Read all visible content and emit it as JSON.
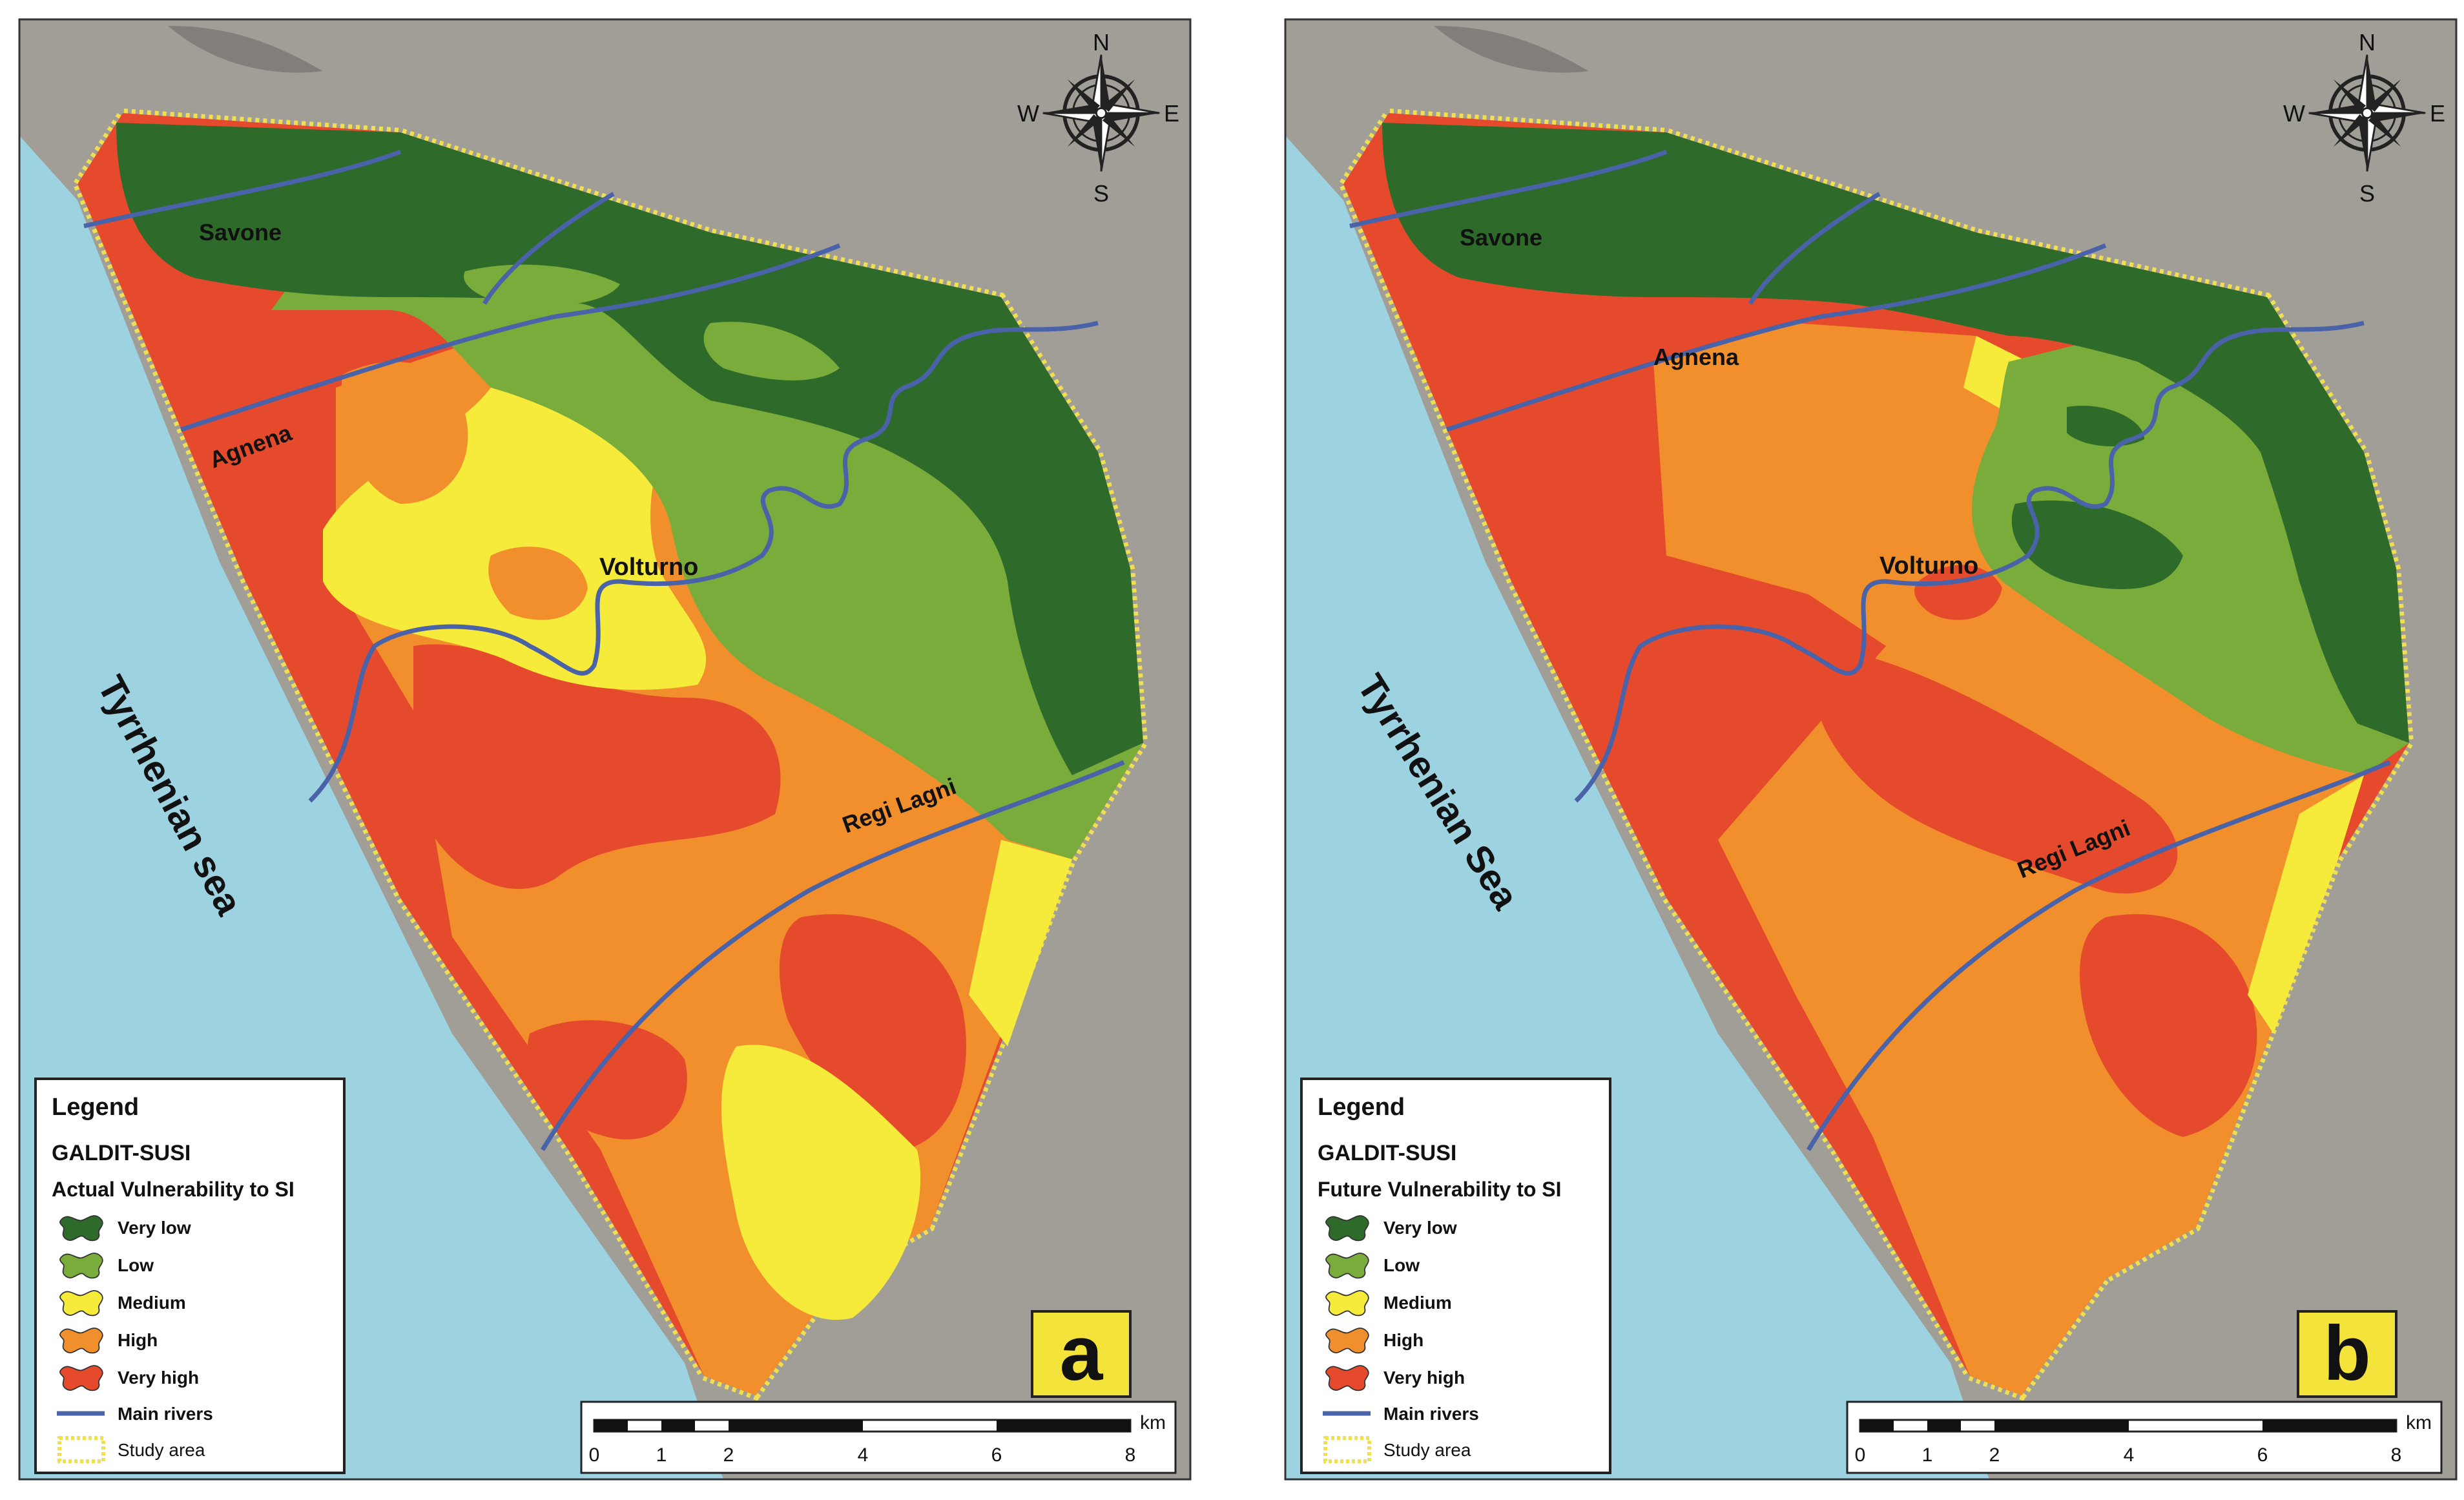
{
  "colors": {
    "sea": "#9dd3e0",
    "land": "#a19e98",
    "very_low": "#2e6a2a",
    "low": "#7aac3c",
    "medium": "#f6ea3a",
    "high": "#f18f2c",
    "very_high": "#e64a2c",
    "river": "#4a62a8",
    "study_area": "#f0e050",
    "panel_label_bg": "#f3e33a"
  },
  "panels": [
    {
      "panel_label": "a",
      "sea_label": "Tyrrhenian sea",
      "rivers": {
        "savone": "Savone",
        "agnena": "Agnena",
        "volturno": "Volturno",
        "regi_lagni": "Regi Lagni"
      },
      "compass": {
        "n": "N",
        "s": "S",
        "e": "E",
        "w": "W"
      },
      "legend": {
        "title": "Legend",
        "index": "GALDIT-SUSI",
        "subtitle": "Actual Vulnerability to SI",
        "classes": [
          "Very low",
          "Low",
          "Medium",
          "High",
          "Very high"
        ],
        "rivers_label": "Main rivers",
        "study_label": "Study area"
      },
      "scale": {
        "unit": "km",
        "ticks": [
          "0",
          "1",
          "2",
          "4",
          "6",
          "8"
        ]
      }
    },
    {
      "panel_label": "b",
      "sea_label": "Tyrrhenian Sea",
      "rivers": {
        "savone": "Savone",
        "agnena": "Agnena",
        "volturno": "Volturno",
        "regi_lagni": "Regi Lagni"
      },
      "compass": {
        "n": "N",
        "s": "S",
        "e": "E",
        "w": "W"
      },
      "legend": {
        "title": "Legend",
        "index": "GALDIT-SUSI",
        "subtitle": "Future Vulnerability to SI",
        "classes": [
          "Very low",
          "Low",
          "Medium",
          "High",
          "Very high"
        ],
        "rivers_label": "Main rivers",
        "study_label": "Study area"
      },
      "scale": {
        "unit": "km",
        "ticks": [
          "0",
          "1",
          "2",
          "4",
          "6",
          "8"
        ]
      }
    }
  ]
}
